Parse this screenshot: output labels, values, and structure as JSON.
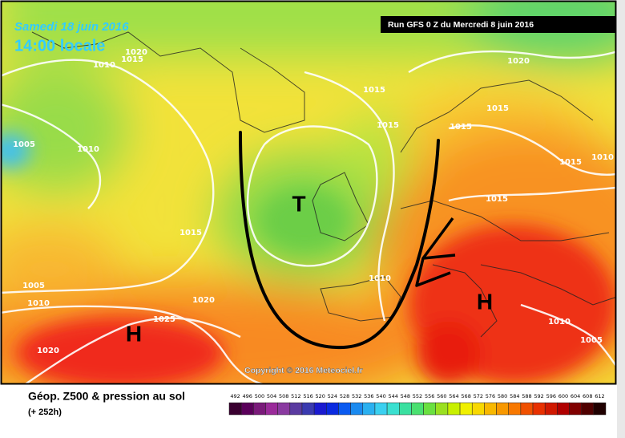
{
  "map": {
    "date": "Samedi 18 juin 2016",
    "time": "14:00 locale",
    "run": "Run GFS 0 Z du Mercredi 8 juin 2016",
    "copyright": "Copyright © 2016 Meteociel.fr",
    "isobar_labels": [
      1020,
      1015,
      1010,
      1005,
      1010,
      1015,
      1015,
      1020,
      1015,
      1015,
      1015,
      1010,
      1015,
      1015,
      1005,
      1010,
      1020,
      1025,
      1010,
      1020,
      1010,
      1005
    ],
    "pressure_centers": [
      "T",
      "H",
      "H"
    ]
  },
  "legend": {
    "title": "Géop. Z500 & pression au sol",
    "lead": "(+ 252h)",
    "scale": {
      "labels": [
        492,
        496,
        500,
        504,
        508,
        512,
        516,
        520,
        524,
        528,
        532,
        536,
        540,
        544,
        548,
        552,
        556,
        560,
        564,
        568,
        572,
        576,
        580,
        584,
        588,
        592,
        596,
        600,
        604,
        608,
        612
      ],
      "colors": [
        "#3a0030",
        "#5a005a",
        "#7a1a7a",
        "#9a2a9a",
        "#8a3aa0",
        "#5a3aa0",
        "#3a3ab0",
        "#1a1ad0",
        "#0a2ae0",
        "#0a5af0",
        "#1a8af0",
        "#2ab0f0",
        "#3ad0f0",
        "#3ae0d0",
        "#3ae0a0",
        "#4ae070",
        "#6ae040",
        "#9ae020",
        "#c8f000",
        "#f0f000",
        "#f8d800",
        "#f8b800",
        "#f89800",
        "#f87800",
        "#f05000",
        "#e83000",
        "#d01800",
        "#b00000",
        "#800000",
        "#500000",
        "#200000"
      ]
    }
  }
}
